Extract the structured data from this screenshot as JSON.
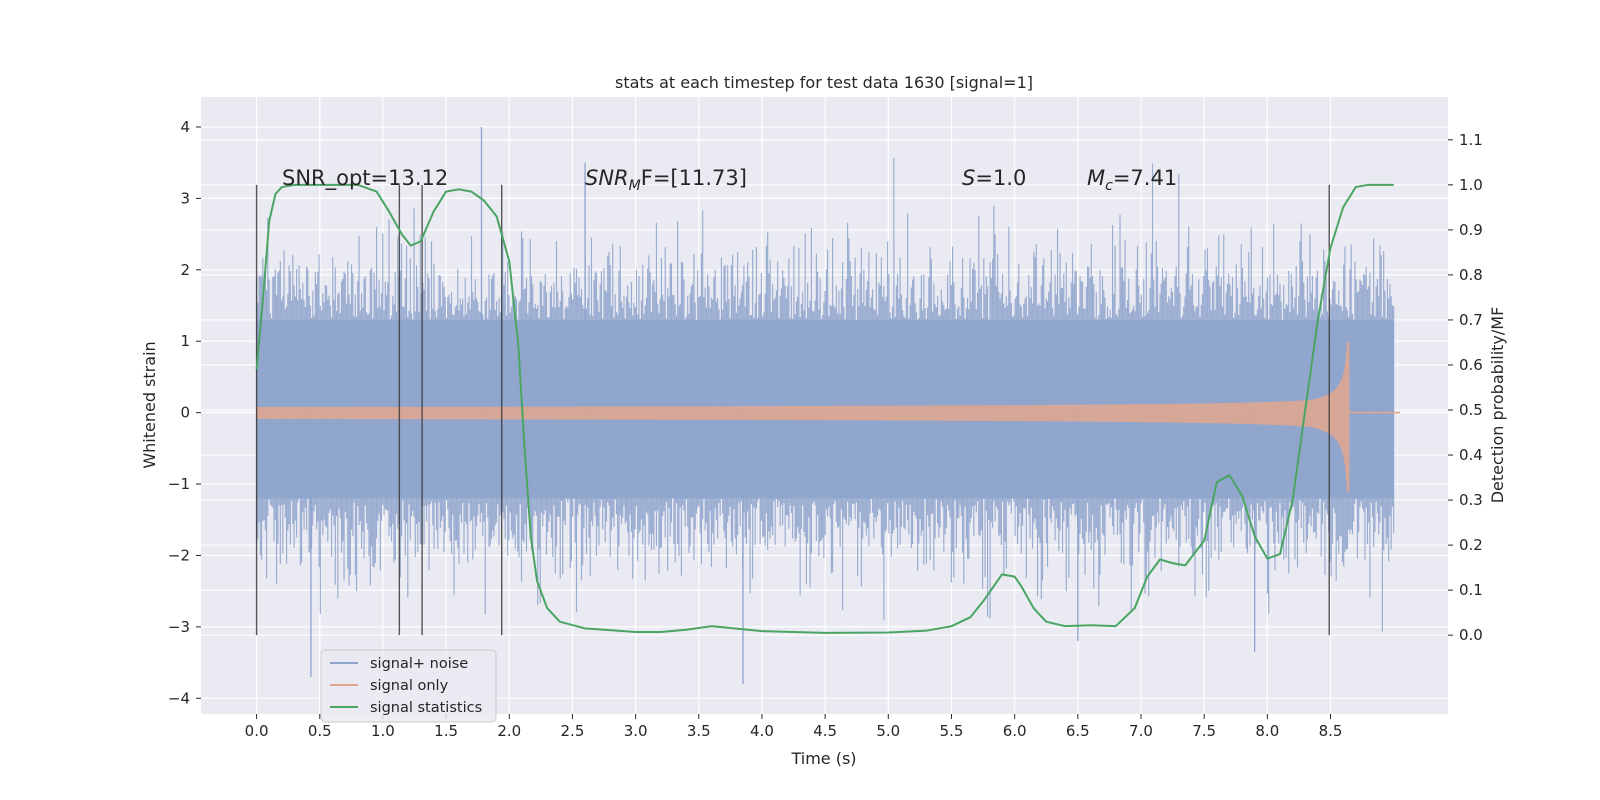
{
  "chart_data": {
    "type": "line",
    "title": "stats at each timestep for test data 1630 [signal=1]",
    "xlabel": "Time (s)",
    "ylabel": "Whitened strain",
    "y2label": "Detection probability/MF",
    "xlim": [
      -0.44,
      9.43
    ],
    "ylim": [
      -4.22,
      4.42
    ],
    "y2lim": [
      -0.175,
      1.195
    ],
    "x_ticks": [
      "0.0",
      "0.5",
      "1.0",
      "1.5",
      "2.0",
      "2.5",
      "3.0",
      "3.5",
      "4.0",
      "4.5",
      "5.0",
      "5.5",
      "6.0",
      "6.5",
      "7.0",
      "7.5",
      "8.0",
      "8.5"
    ],
    "y_ticks": [
      "-4",
      "-3",
      "-2",
      "-1",
      "0",
      "1",
      "2",
      "3",
      "4"
    ],
    "y2_ticks": [
      "0.0",
      "0.1",
      "0.2",
      "0.3",
      "0.4",
      "0.5",
      "0.6",
      "0.7",
      "0.8",
      "0.9",
      "1.0",
      "1.1"
    ],
    "grid": true,
    "legend_position": "lower-left",
    "annotations": {
      "snr_opt": "SNR_opt=13.12",
      "snr_mf_main": "SNR",
      "snr_mf_sub": "M",
      "snr_mf_rest": "F=[11.73]",
      "s_main": "S",
      "s_rest": "=1.0",
      "mc_main": "M",
      "mc_sub": "c",
      "mc_rest": "=7.41"
    },
    "vertical_markers": [
      0.0,
      1.13,
      1.31,
      1.94,
      8.49
    ],
    "series": [
      {
        "name": "signal+ noise",
        "color": "#8fa4cc",
        "kind": "noise",
        "x_range": [
          0.0,
          9.0
        ],
        "band": [
          -1.2,
          1.3
        ],
        "extremes": [
          -3.8,
          4.0
        ]
      },
      {
        "name": "signal only",
        "color": "#e3a68d",
        "kind": "chirp",
        "x_range": [
          0.0,
          8.7
        ],
        "merger_time": 8.65,
        "peak_amplitude": 1.8
      },
      {
        "name": "signal statistics",
        "color": "#4aa562",
        "kind": "line",
        "axis": "right",
        "x": [
          0.0,
          0.06,
          0.1,
          0.15,
          0.2,
          0.3,
          0.5,
          0.8,
          0.95,
          1.05,
          1.15,
          1.22,
          1.3,
          1.4,
          1.5,
          1.6,
          1.7,
          1.8,
          1.9,
          2.0,
          2.07,
          2.12,
          2.17,
          2.22,
          2.3,
          2.4,
          2.6,
          3.0,
          3.2,
          3.4,
          3.6,
          4.0,
          4.5,
          5.0,
          5.3,
          5.5,
          5.65,
          5.75,
          5.9,
          6.0,
          6.05,
          6.15,
          6.25,
          6.4,
          6.6,
          6.8,
          6.95,
          7.05,
          7.15,
          7.25,
          7.35,
          7.5,
          7.6,
          7.7,
          7.8,
          7.9,
          8.0,
          8.1,
          8.2,
          8.3,
          8.4,
          8.5,
          8.6,
          8.7,
          8.8,
          9.0
        ],
        "y": [
          0.59,
          0.78,
          0.92,
          0.98,
          0.995,
          1.0,
          1.0,
          1.0,
          0.985,
          0.94,
          0.89,
          0.865,
          0.875,
          0.94,
          0.985,
          0.99,
          0.985,
          0.965,
          0.93,
          0.83,
          0.65,
          0.42,
          0.22,
          0.12,
          0.06,
          0.03,
          0.015,
          0.007,
          0.007,
          0.012,
          0.02,
          0.009,
          0.005,
          0.006,
          0.01,
          0.02,
          0.04,
          0.075,
          0.135,
          0.13,
          0.11,
          0.06,
          0.03,
          0.02,
          0.022,
          0.02,
          0.06,
          0.13,
          0.168,
          0.16,
          0.155,
          0.21,
          0.34,
          0.355,
          0.31,
          0.22,
          0.17,
          0.18,
          0.3,
          0.5,
          0.7,
          0.86,
          0.95,
          0.995,
          1.0,
          1.0
        ]
      }
    ]
  }
}
